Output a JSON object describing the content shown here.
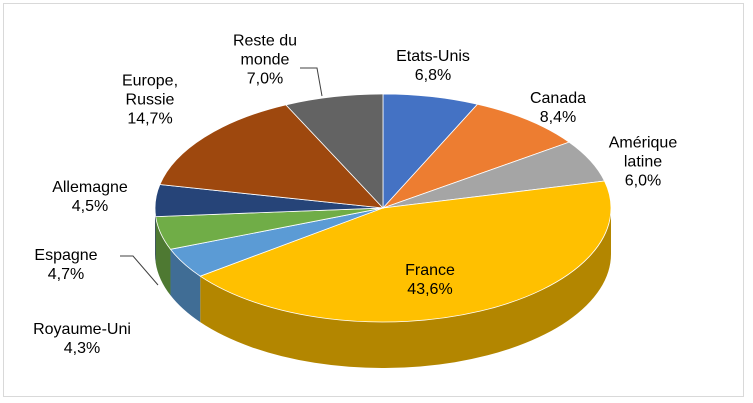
{
  "chart_data": {
    "type": "pie3d",
    "categories": [
      "Etats-Unis",
      "Canada",
      "Amérique latine",
      "France",
      "Royaume-Uni",
      "Espagne",
      "Allemagne",
      "Europe, Russie",
      "Reste du monde"
    ],
    "values": [
      6.8,
      8.4,
      6.0,
      43.6,
      4.3,
      4.7,
      4.5,
      14.7,
      7.0
    ],
    "value_labels": [
      "6,8%",
      "8,4%",
      "6,0%",
      "43,6%",
      "4,3%",
      "4,7%",
      "4,5%",
      "14,7%",
      "7,0%"
    ],
    "colors": [
      "#4472c4",
      "#ed7d31",
      "#a5a5a5",
      "#ffc000",
      "#5b9bd5",
      "#70ad47",
      "#264478",
      "#9e480e",
      "#636363"
    ]
  }
}
